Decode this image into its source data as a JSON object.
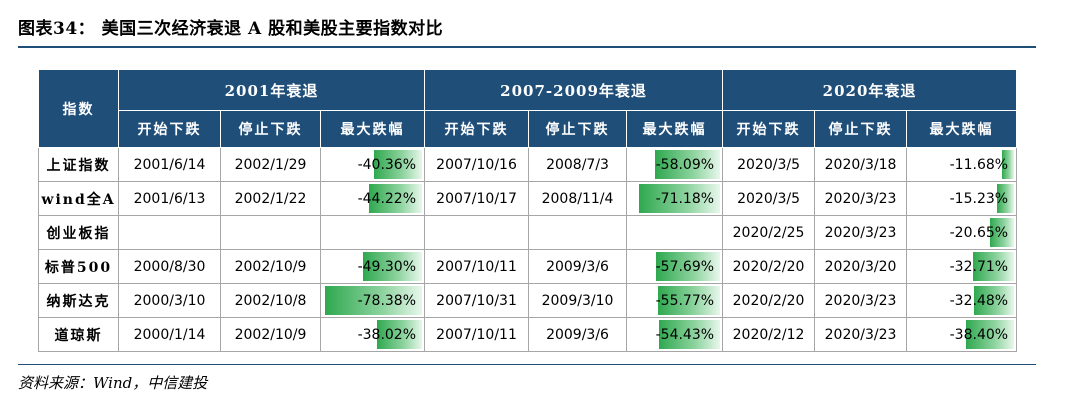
{
  "header": {
    "title": "图表34： 美国三次经济衰退 A 股和美股主要指数对比"
  },
  "table": {
    "index_header": "指数",
    "periods": [
      "2001年衰退",
      "2007-2009年衰退",
      "2020年衰退"
    ],
    "sub_headers": [
      "开始下跌",
      "停止下跌",
      "最大跌幅"
    ],
    "rows": [
      {
        "name": "上证指数",
        "cells": [
          {
            "start": "2001/6/14",
            "end": "2002/1/29",
            "dd": "-40.36%",
            "dd_value": -40.36
          },
          {
            "start": "2007/10/16",
            "end": "2008/7/3",
            "dd": "-58.09%",
            "dd_value": -58.09
          },
          {
            "start": "2020/3/5",
            "end": "2020/3/18",
            "dd": "-11.68%",
            "dd_value": -11.68
          }
        ]
      },
      {
        "name": "wind全A",
        "cells": [
          {
            "start": "2001/6/13",
            "end": "2002/1/22",
            "dd": "-44.22%",
            "dd_value": -44.22
          },
          {
            "start": "2007/10/17",
            "end": "2008/11/4",
            "dd": "-71.18%",
            "dd_value": -71.18
          },
          {
            "start": "2020/3/5",
            "end": "2020/3/23",
            "dd": "-15.23%",
            "dd_value": -15.23
          }
        ]
      },
      {
        "name": "创业板指",
        "cells": [
          {
            "start": "",
            "end": "",
            "dd": "",
            "dd_value": null
          },
          {
            "start": "",
            "end": "",
            "dd": "",
            "dd_value": null
          },
          {
            "start": "2020/2/25",
            "end": "2020/3/23",
            "dd": "-20.65%",
            "dd_value": -20.65
          }
        ]
      },
      {
        "name": "标普500",
        "cells": [
          {
            "start": "2000/8/30",
            "end": "2002/10/9",
            "dd": "-49.30%",
            "dd_value": -49.3
          },
          {
            "start": "2007/10/11",
            "end": "2009/3/6",
            "dd": "-57.69%",
            "dd_value": -57.69
          },
          {
            "start": "2020/2/20",
            "end": "2020/3/20",
            "dd": "-32.71%",
            "dd_value": -32.71
          }
        ]
      },
      {
        "name": "纳斯达克",
        "cells": [
          {
            "start": "2000/3/10",
            "end": "2002/10/8",
            "dd": "-78.38%",
            "dd_value": -78.38
          },
          {
            "start": "2007/10/31",
            "end": "2009/3/10",
            "dd": "-55.77%",
            "dd_value": -55.77
          },
          {
            "start": "2020/2/20",
            "end": "2020/3/23",
            "dd": "-32.48%",
            "dd_value": -32.48
          }
        ]
      },
      {
        "name": "道琼斯",
        "cells": [
          {
            "start": "2000/1/14",
            "end": "2002/10/9",
            "dd": "-38.02%",
            "dd_value": -38.02
          },
          {
            "start": "2007/10/11",
            "end": "2009/3/6",
            "dd": "-54.43%",
            "dd_value": -54.43
          },
          {
            "start": "2020/2/12",
            "end": "2020/3/23",
            "dd": "-38.40%",
            "dd_value": -38.4
          }
        ]
      }
    ]
  },
  "footer": {
    "source": "资料来源：Wind，中信建投"
  },
  "colors": {
    "header_bg": "#1f4e79",
    "bar": "#2fa84f"
  }
}
